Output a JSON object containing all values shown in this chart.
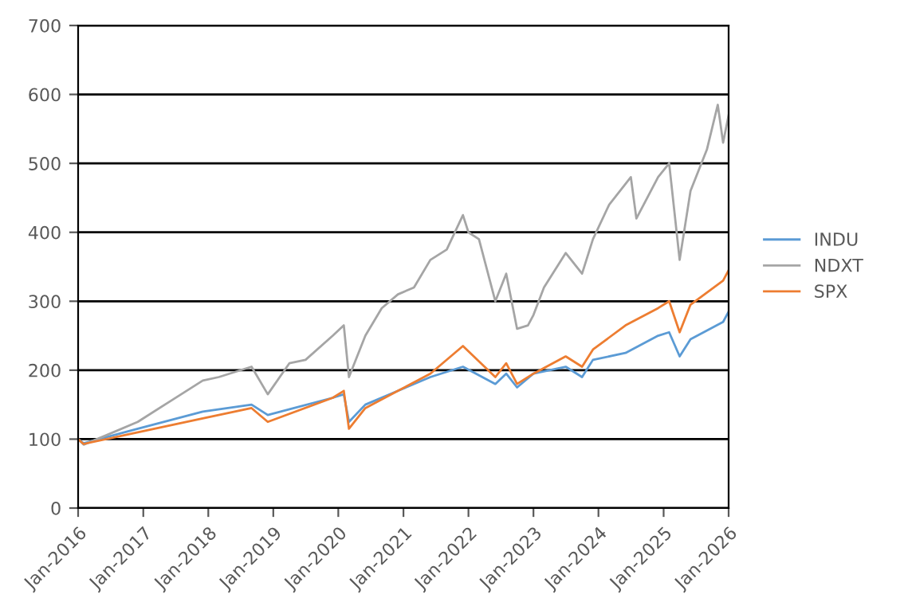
{
  "chart_data": {
    "type": "line",
    "ylim": [
      0,
      700
    ],
    "yticks": [
      0,
      100,
      200,
      300,
      400,
      500,
      600,
      700
    ],
    "xlim": [
      "2016-01",
      "2026-01"
    ],
    "xticks": [
      {
        "value": "2016-01",
        "label": "Jan-2016"
      },
      {
        "value": "2017-01",
        "label": "Jan-2017"
      },
      {
        "value": "2018-01",
        "label": "Jan-2018"
      },
      {
        "value": "2019-01",
        "label": "Jan-2019"
      },
      {
        "value": "2020-01",
        "label": "Jan-2020"
      },
      {
        "value": "2021-01",
        "label": "Jan-2021"
      },
      {
        "value": "2022-01",
        "label": "Jan-2022"
      },
      {
        "value": "2023-01",
        "label": "Jan-2023"
      },
      {
        "value": "2024-01",
        "label": "Jan-2024"
      },
      {
        "value": "2025-01",
        "label": "Jan-2025"
      },
      {
        "value": "2026-01",
        "label": "Jan-2026"
      }
    ],
    "grid": "y",
    "legend": "right",
    "marker": "none",
    "line_style": "solid",
    "series": [
      {
        "name": "INDU",
        "color": "#5b9bd5",
        "x": [
          "2016-01",
          "2016-02",
          "2016-12",
          "2017-12",
          "2018-09",
          "2018-12",
          "2019-12",
          "2020-02",
          "2020-03",
          "2020-06",
          "2020-12",
          "2021-06",
          "2021-12",
          "2022-06",
          "2022-08",
          "2022-10",
          "2023-01",
          "2023-07",
          "2023-10",
          "2023-12",
          "2024-06",
          "2024-12",
          "2025-02",
          "2025-04",
          "2025-06",
          "2025-12",
          "2026-01"
        ],
        "values": [
          100,
          94,
          115,
          140,
          150,
          135,
          160,
          165,
          125,
          150,
          170,
          190,
          205,
          180,
          195,
          175,
          195,
          205,
          190,
          215,
          225,
          250,
          255,
          220,
          245,
          270,
          285
        ]
      },
      {
        "name": "NDXT",
        "color": "#a5a5a5",
        "x": [
          "2016-01",
          "2016-02",
          "2016-06",
          "2016-12",
          "2017-06",
          "2017-12",
          "2018-03",
          "2018-09",
          "2018-12",
          "2019-04",
          "2019-07",
          "2019-12",
          "2020-02",
          "2020-03",
          "2020-06",
          "2020-09",
          "2020-12",
          "2021-03",
          "2021-06",
          "2021-09",
          "2021-12",
          "2022-01",
          "2022-03",
          "2022-06",
          "2022-08",
          "2022-10",
          "2022-12",
          "2023-01",
          "2023-03",
          "2023-07",
          "2023-10",
          "2023-12",
          "2024-03",
          "2024-07",
          "2024-08",
          "2024-12",
          "2025-02",
          "2025-04",
          "2025-06",
          "2025-09",
          "2025-11",
          "2025-12",
          "2026-01"
        ],
        "values": [
          100,
          92,
          105,
          125,
          155,
          185,
          190,
          205,
          165,
          210,
          215,
          250,
          265,
          190,
          250,
          290,
          310,
          320,
          360,
          375,
          425,
          400,
          390,
          300,
          340,
          260,
          265,
          280,
          320,
          370,
          340,
          390,
          440,
          480,
          420,
          480,
          500,
          360,
          460,
          520,
          585,
          530,
          570
        ]
      },
      {
        "name": "SPX",
        "color": "#ed7d31",
        "x": [
          "2016-01",
          "2016-02",
          "2016-12",
          "2017-12",
          "2018-09",
          "2018-12",
          "2019-12",
          "2020-02",
          "2020-03",
          "2020-06",
          "2020-12",
          "2021-06",
          "2021-12",
          "2022-06",
          "2022-08",
          "2022-10",
          "2023-01",
          "2023-07",
          "2023-10",
          "2023-12",
          "2024-06",
          "2024-12",
          "2025-02",
          "2025-04",
          "2025-06",
          "2025-12",
          "2026-01"
        ],
        "values": [
          100,
          93,
          110,
          130,
          145,
          125,
          160,
          170,
          115,
          145,
          170,
          195,
          235,
          190,
          210,
          180,
          195,
          220,
          205,
          230,
          265,
          290,
          300,
          255,
          295,
          330,
          345
        ]
      }
    ]
  }
}
